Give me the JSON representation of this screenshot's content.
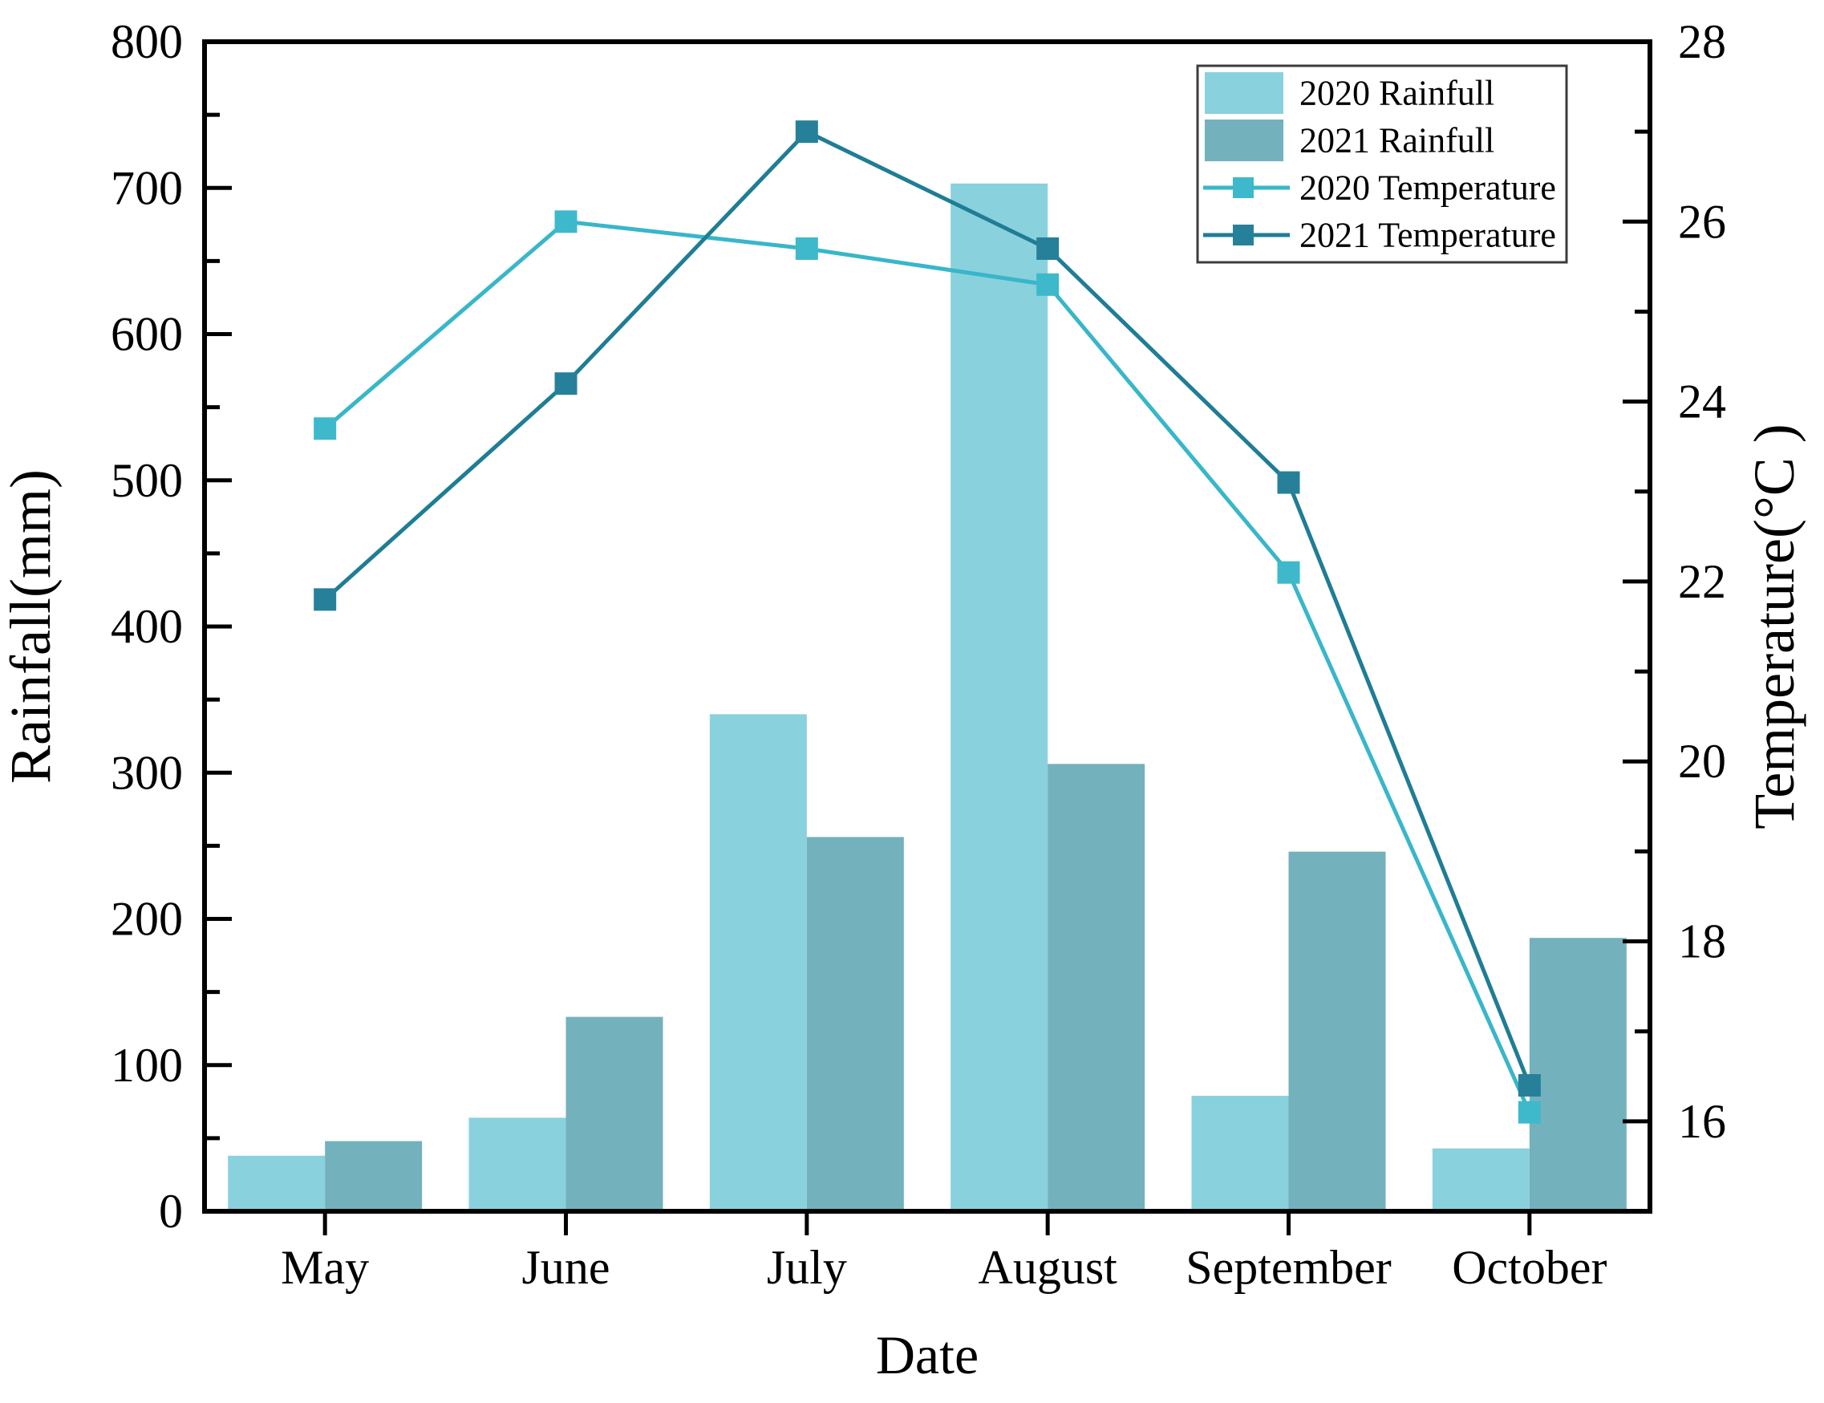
{
  "chart_data": {
    "type": "combo-bar-line",
    "title": "",
    "xlabel": "Date",
    "ylabel_left": "Rainfall(mm)",
    "ylabel_right": "Temperature(°C )",
    "categories": [
      "May",
      "June",
      "July",
      "August",
      "September",
      "October"
    ],
    "series": [
      {
        "name": "2020 Rainfull",
        "type": "bar",
        "axis": "left",
        "values": [
          38,
          64,
          340,
          703,
          79,
          43
        ]
      },
      {
        "name": "2021 Rainfull",
        "type": "bar",
        "axis": "left",
        "values": [
          48,
          133,
          256,
          306,
          246,
          187
        ]
      },
      {
        "name": "2020 Temperature",
        "type": "line",
        "axis": "right",
        "values": [
          23.7,
          26.0,
          25.7,
          25.3,
          22.1,
          16.1
        ]
      },
      {
        "name": "2021 Temperature",
        "type": "line",
        "axis": "right",
        "values": [
          21.8,
          24.2,
          27.0,
          25.7,
          23.1,
          16.4
        ]
      }
    ],
    "y_left": {
      "min": 0,
      "max": 800,
      "major_step": 100,
      "minor_step": 50,
      "tick_labels": [
        "0",
        "100",
        "200",
        "300",
        "400",
        "500",
        "600",
        "700",
        "800"
      ]
    },
    "y_right": {
      "min": 15,
      "max": 28,
      "major_step": 2,
      "minor_step": 1,
      "tick_labels": [
        "16",
        "18",
        "20",
        "22",
        "24",
        "26",
        "28"
      ]
    },
    "grid": false,
    "legend": {
      "position": "top-right",
      "items": [
        "2020 Rainfull",
        "2021 Rainfull",
        "2020 Temperature",
        "2021 Temperature"
      ]
    }
  },
  "colors": {
    "bar_2020": "#8ad1de",
    "bar_2021": "#73b1bd",
    "line_2020": "#39b6c9",
    "marker_2020": "#3db9cb",
    "line_2021": "#1f7d95",
    "marker_2021": "#27809a",
    "axis": "#000000",
    "text": "#000000",
    "legend_border": "#3c3c3c",
    "background": "#ffffff"
  }
}
